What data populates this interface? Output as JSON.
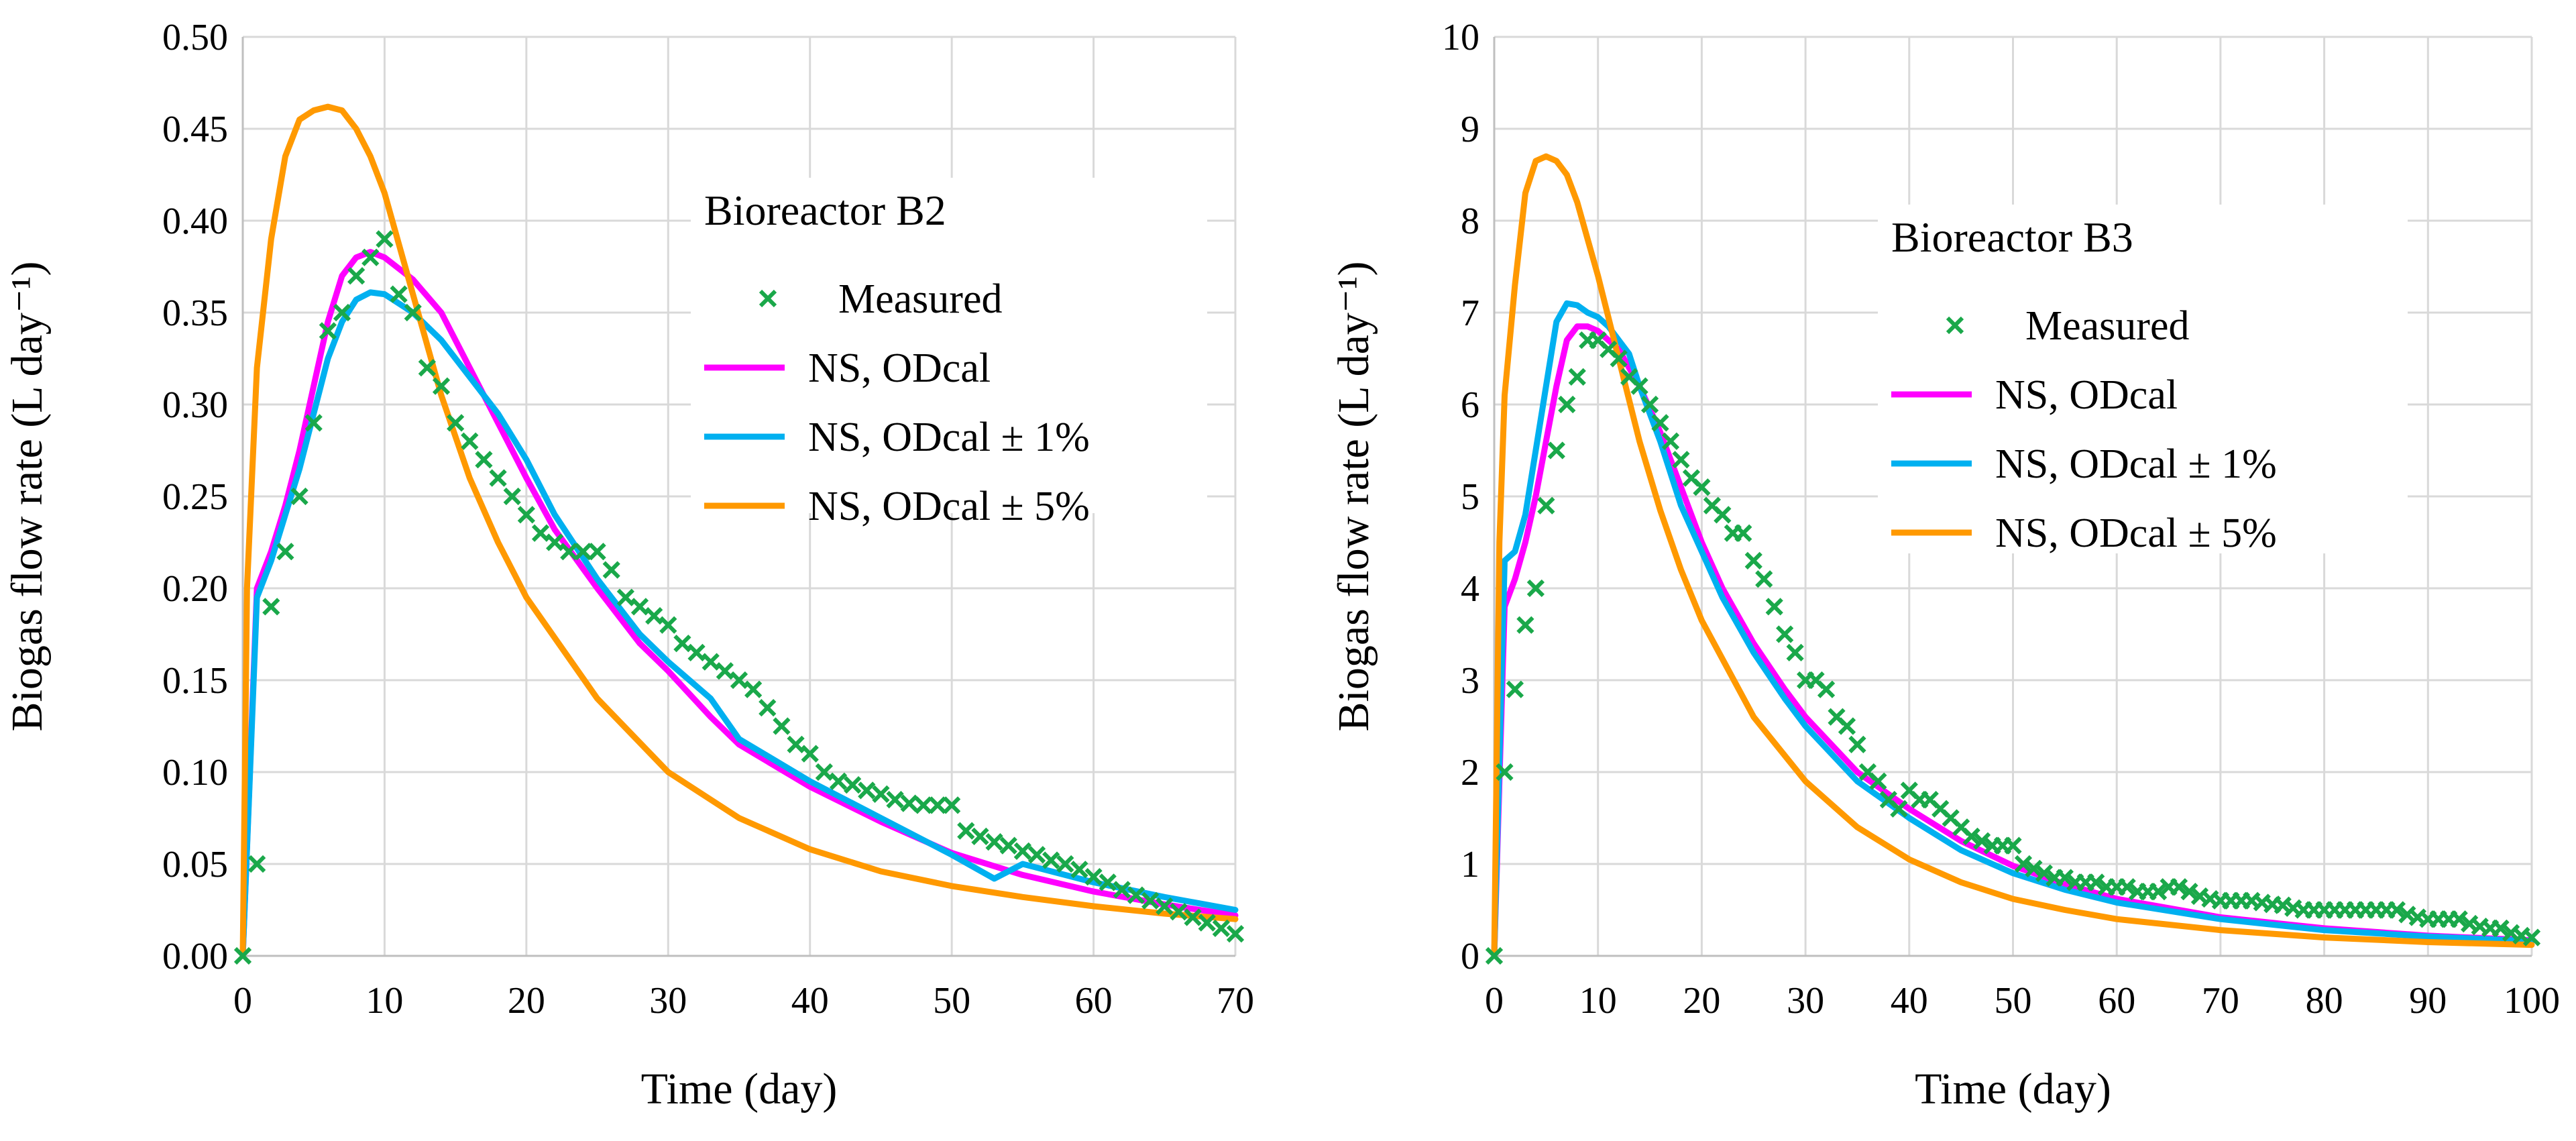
{
  "chart_data": [
    {
      "type": "line",
      "legend_title": "Bioreactor B2",
      "xlabel": "Time (day)",
      "ylabel": "Biogas flow rate (L day⁻¹)",
      "xlim": [
        0,
        70
      ],
      "ylim": [
        0,
        0.5
      ],
      "xticks": [
        "0",
        "10",
        "20",
        "30",
        "40",
        "50",
        "60",
        "70"
      ],
      "yticks": [
        "0.00",
        "0.05",
        "0.10",
        "0.15",
        "0.20",
        "0.25",
        "0.30",
        "0.35",
        "0.40",
        "0.45",
        "0.50"
      ],
      "legend_position": "top-right",
      "series": [
        {
          "name": "Measured",
          "kind": "marker",
          "color": "#1aa84a",
          "x": [
            0,
            1,
            2,
            3,
            4,
            5,
            6,
            7,
            8,
            9,
            10,
            11,
            12,
            13,
            14,
            15,
            16,
            17,
            18,
            19,
            20,
            21,
            22,
            23,
            24,
            25,
            26,
            27,
            28,
            29,
            30,
            31,
            32,
            33,
            34,
            35,
            36,
            37,
            38,
            39,
            40,
            41,
            42,
            43,
            44,
            45,
            46,
            47,
            48,
            49,
            50,
            51,
            52,
            53,
            54,
            55,
            56,
            57,
            58,
            59,
            60,
            61,
            62,
            63,
            64,
            65,
            66,
            67,
            68,
            69,
            70
          ],
          "y": [
            0.0,
            0.05,
            0.19,
            0.22,
            0.25,
            0.29,
            0.34,
            0.35,
            0.37,
            0.38,
            0.39,
            0.36,
            0.35,
            0.32,
            0.31,
            0.29,
            0.28,
            0.27,
            0.26,
            0.25,
            0.24,
            0.23,
            0.225,
            0.22,
            0.22,
            0.22,
            0.21,
            0.195,
            0.19,
            0.185,
            0.18,
            0.17,
            0.165,
            0.16,
            0.155,
            0.15,
            0.145,
            0.135,
            0.125,
            0.115,
            0.11,
            0.1,
            0.095,
            0.093,
            0.09,
            0.088,
            0.085,
            0.083,
            0.082,
            0.082,
            0.082,
            0.068,
            0.065,
            0.062,
            0.06,
            0.057,
            0.055,
            0.052,
            0.05,
            0.047,
            0.043,
            0.04,
            0.036,
            0.033,
            0.03,
            0.027,
            0.024,
            0.021,
            0.018,
            0.015,
            0.012
          ]
        },
        {
          "name": "NS, ODcal",
          "kind": "line",
          "color": "#ff00ff",
          "x": [
            0,
            1,
            2,
            3,
            4,
            5,
            6,
            7,
            8,
            9,
            10,
            12,
            14,
            16,
            18,
            20,
            22,
            25,
            28,
            30,
            33,
            35,
            40,
            45,
            50,
            55,
            60,
            65,
            70
          ],
          "y": [
            0.0,
            0.2,
            0.22,
            0.245,
            0.275,
            0.31,
            0.345,
            0.37,
            0.38,
            0.383,
            0.38,
            0.368,
            0.35,
            0.32,
            0.29,
            0.26,
            0.232,
            0.2,
            0.17,
            0.155,
            0.13,
            0.115,
            0.092,
            0.073,
            0.056,
            0.044,
            0.035,
            0.028,
            0.022
          ]
        },
        {
          "name": "NS, ODcal ± 1%",
          "kind": "line",
          "color": "#00b0f0",
          "x": [
            0,
            1,
            2,
            3,
            4,
            5,
            6,
            7,
            8,
            9,
            10,
            12,
            14,
            16,
            18,
            20,
            22,
            25,
            28,
            30,
            33,
            35,
            40,
            45,
            50,
            53,
            55,
            60,
            65,
            70
          ],
          "y": [
            0.0,
            0.195,
            0.215,
            0.24,
            0.265,
            0.295,
            0.325,
            0.345,
            0.357,
            0.361,
            0.36,
            0.35,
            0.335,
            0.315,
            0.295,
            0.27,
            0.24,
            0.205,
            0.175,
            0.16,
            0.14,
            0.118,
            0.095,
            0.075,
            0.055,
            0.042,
            0.05,
            0.04,
            0.032,
            0.025
          ]
        },
        {
          "name": "NS, ODcal ± 5%",
          "kind": "line",
          "color": "#ff9900",
          "x": [
            0,
            0.3,
            1,
            2,
            3,
            4,
            5,
            6,
            7,
            8,
            9,
            10,
            12,
            14,
            16,
            18,
            20,
            25,
            30,
            35,
            40,
            45,
            50,
            55,
            60,
            65,
            70
          ],
          "y": [
            0.0,
            0.2,
            0.32,
            0.39,
            0.435,
            0.455,
            0.46,
            0.462,
            0.46,
            0.45,
            0.435,
            0.415,
            0.36,
            0.305,
            0.26,
            0.225,
            0.195,
            0.14,
            0.1,
            0.075,
            0.058,
            0.046,
            0.038,
            0.032,
            0.027,
            0.023,
            0.02
          ]
        }
      ]
    },
    {
      "type": "line",
      "legend_title": "Bioreactor B3",
      "xlabel": "Time (day)",
      "ylabel": "Biogas flow rate (L day⁻¹)",
      "xlim": [
        0,
        100
      ],
      "ylim": [
        0,
        10
      ],
      "xticks": [
        "0",
        "10",
        "20",
        "30",
        "40",
        "50",
        "60",
        "70",
        "80",
        "90",
        "100"
      ],
      "yticks": [
        "0",
        "1",
        "2",
        "3",
        "4",
        "5",
        "6",
        "7",
        "8",
        "9",
        "10"
      ],
      "legend_position": "top-right",
      "series": [
        {
          "name": "Measured",
          "kind": "marker",
          "color": "#1aa84a",
          "x": [
            0,
            1,
            2,
            3,
            4,
            5,
            6,
            7,
            8,
            9,
            10,
            11,
            12,
            13,
            14,
            15,
            16,
            17,
            18,
            19,
            20,
            21,
            22,
            23,
            24,
            25,
            26,
            27,
            28,
            29,
            30,
            31,
            32,
            33,
            34,
            35,
            36,
            37,
            38,
            39,
            40,
            41,
            42,
            43,
            44,
            45,
            46,
            47,
            48,
            49,
            50,
            51,
            52,
            53,
            54,
            55,
            56,
            57,
            58,
            59,
            60,
            61,
            62,
            63,
            64,
            65,
            66,
            67,
            68,
            69,
            70,
            71,
            72,
            73,
            74,
            75,
            76,
            77,
            78,
            79,
            80,
            81,
            82,
            83,
            84,
            85,
            86,
            87,
            88,
            89,
            90,
            91,
            92,
            93,
            94,
            95,
            96,
            97,
            98,
            99,
            100
          ],
          "y": [
            0.0,
            2.0,
            2.9,
            3.6,
            4.0,
            4.9,
            5.5,
            6.0,
            6.3,
            6.7,
            6.7,
            6.6,
            6.5,
            6.3,
            6.2,
            6.0,
            5.8,
            5.6,
            5.4,
            5.2,
            5.1,
            4.9,
            4.8,
            4.6,
            4.6,
            4.3,
            4.1,
            3.8,
            3.5,
            3.3,
            3.0,
            3.0,
            2.9,
            2.6,
            2.5,
            2.3,
            2.0,
            1.9,
            1.7,
            1.6,
            1.8,
            1.7,
            1.7,
            1.6,
            1.5,
            1.4,
            1.3,
            1.25,
            1.2,
            1.2,
            1.2,
            1.0,
            0.95,
            0.9,
            0.85,
            0.85,
            0.8,
            0.8,
            0.8,
            0.75,
            0.75,
            0.75,
            0.7,
            0.7,
            0.7,
            0.75,
            0.75,
            0.7,
            0.65,
            0.62,
            0.6,
            0.6,
            0.6,
            0.6,
            0.58,
            0.56,
            0.55,
            0.52,
            0.5,
            0.5,
            0.5,
            0.5,
            0.5,
            0.5,
            0.5,
            0.5,
            0.5,
            0.5,
            0.45,
            0.42,
            0.4,
            0.4,
            0.4,
            0.4,
            0.35,
            0.32,
            0.3,
            0.3,
            0.25,
            0.22,
            0.2
          ]
        },
        {
          "name": "NS, ODcal",
          "kind": "line",
          "color": "#ff00ff",
          "x": [
            0,
            1,
            2,
            3,
            4,
            5,
            6,
            7,
            8,
            9,
            10,
            11,
            12,
            14,
            16,
            18,
            20,
            22,
            25,
            28,
            30,
            35,
            40,
            45,
            50,
            55,
            60,
            70,
            80,
            90,
            100
          ],
          "y": [
            0.0,
            3.8,
            4.1,
            4.5,
            5.0,
            5.6,
            6.2,
            6.7,
            6.85,
            6.85,
            6.8,
            6.7,
            6.6,
            6.2,
            5.7,
            5.1,
            4.5,
            4.0,
            3.4,
            2.9,
            2.6,
            2.0,
            1.6,
            1.25,
            0.98,
            0.78,
            0.62,
            0.42,
            0.3,
            0.22,
            0.17
          ]
        },
        {
          "name": "NS, ODcal ± 1%",
          "kind": "line",
          "color": "#00b0f0",
          "x": [
            0,
            1,
            2,
            3,
            4,
            5,
            6,
            7,
            8,
            9,
            10,
            11,
            12,
            13,
            14,
            16,
            18,
            20,
            22,
            25,
            28,
            30,
            35,
            40,
            45,
            50,
            55,
            60,
            70,
            80,
            90,
            100
          ],
          "y": [
            0.0,
            4.3,
            4.4,
            4.8,
            5.5,
            6.2,
            6.9,
            7.1,
            7.08,
            7.0,
            6.95,
            6.85,
            6.7,
            6.55,
            6.2,
            5.6,
            4.9,
            4.4,
            3.9,
            3.3,
            2.8,
            2.5,
            1.9,
            1.5,
            1.15,
            0.9,
            0.72,
            0.58,
            0.4,
            0.28,
            0.21,
            0.16
          ]
        },
        {
          "name": "NS, ODcal ± 5%",
          "kind": "line",
          "color": "#ff9900",
          "x": [
            0,
            0.5,
            1,
            2,
            3,
            4,
            5,
            6,
            7,
            8,
            9,
            10,
            12,
            14,
            16,
            18,
            20,
            25,
            30,
            35,
            40,
            45,
            50,
            55,
            60,
            70,
            80,
            90,
            100
          ],
          "y": [
            0.0,
            4.5,
            6.1,
            7.3,
            8.3,
            8.65,
            8.7,
            8.65,
            8.5,
            8.2,
            7.8,
            7.4,
            6.5,
            5.6,
            4.85,
            4.2,
            3.65,
            2.6,
            1.9,
            1.4,
            1.05,
            0.8,
            0.62,
            0.5,
            0.4,
            0.28,
            0.2,
            0.15,
            0.12
          ]
        }
      ]
    }
  ]
}
